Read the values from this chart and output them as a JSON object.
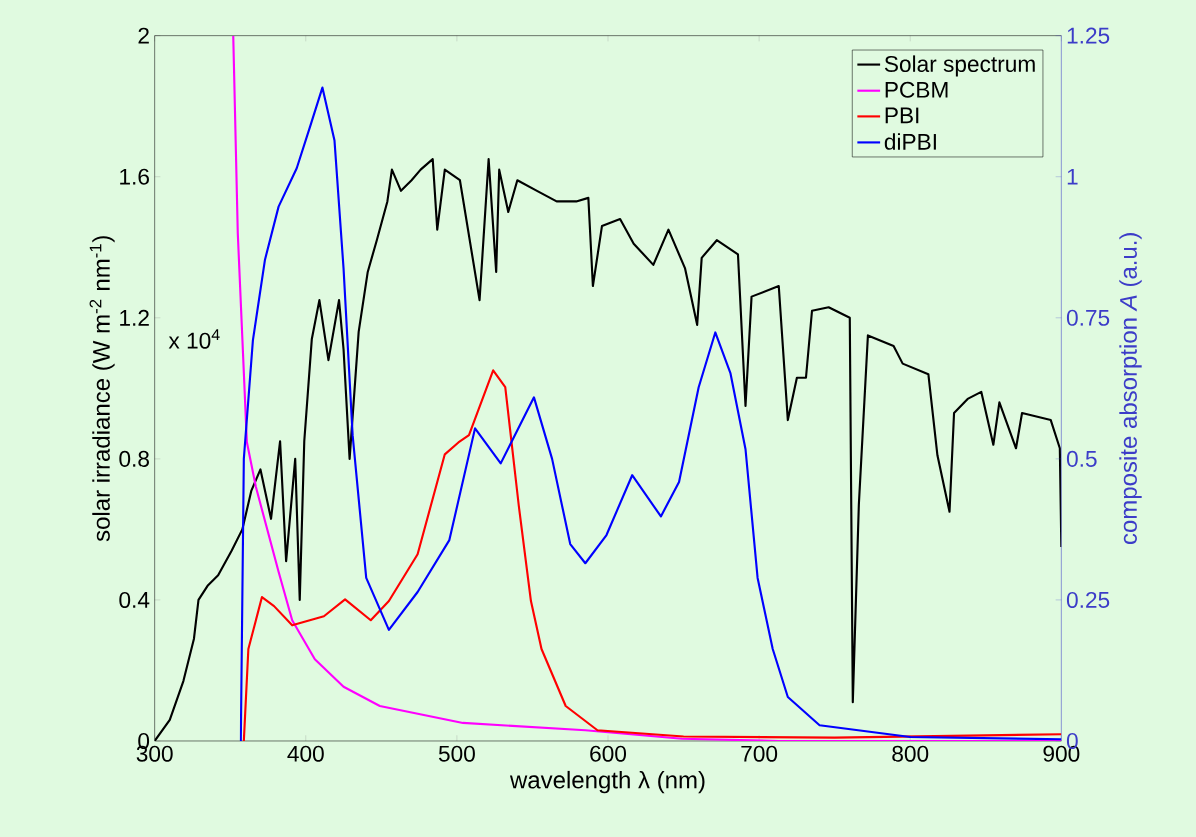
{
  "chart_data": {
    "type": "line",
    "xlabel": "wavelength  λ (nm)",
    "ylabel": "solar irradiance  (W m$^{-2}$ nm$^{-1}$)",
    "y2label": "composite absorption  *A* (a.u.)",
    "annotations": [
      "x 10$^{4}$"
    ],
    "xlim": [
      300,
      900
    ],
    "xticks": [
      300,
      400,
      500,
      600,
      700,
      800,
      900
    ],
    "ylim": [
      0,
      2
    ],
    "yticks": [
      0,
      0.4,
      0.8,
      1.2,
      1.6,
      2
    ],
    "y2lim": [
      0,
      1.25
    ],
    "y2ticks": [
      0,
      0.25,
      0.5,
      0.75,
      1,
      1.25
    ],
    "legend": "top right",
    "series": [
      {
        "name": "Solar spectrum",
        "color": "#000000",
        "axis": "y",
        "x": [
          300,
          310,
          319,
          326,
          329,
          335,
          342,
          351,
          358,
          364,
          370,
          377,
          383,
          387,
          393,
          396,
          399,
          404,
          409,
          415,
          422,
          425,
          429,
          435,
          441,
          447,
          454,
          457,
          463,
          470,
          476,
          484,
          487,
          492,
          502,
          515,
          521,
          526,
          528,
          534,
          540,
          553,
          566,
          579,
          587,
          590,
          596,
          608,
          617,
          630,
          640,
          651,
          659,
          662,
          672,
          686,
          691,
          695,
          713,
          719,
          725,
          731,
          735,
          746,
          760,
          762,
          766,
          772,
          789,
          795,
          812,
          818,
          826,
          829,
          838,
          847,
          855,
          859,
          870,
          874,
          893,
          899,
          900
        ],
        "values": [
          0,
          0.06,
          0.17,
          0.29,
          0.4,
          0.44,
          0.47,
          0.54,
          0.6,
          0.71,
          0.77,
          0.63,
          0.85,
          0.51,
          0.8,
          0.4,
          0.85,
          1.14,
          1.25,
          1.08,
          1.25,
          1.11,
          0.8,
          1.16,
          1.33,
          1.42,
          1.53,
          1.62,
          1.56,
          1.59,
          1.62,
          1.65,
          1.45,
          1.62,
          1.59,
          1.25,
          1.65,
          1.33,
          1.62,
          1.5,
          1.59,
          1.56,
          1.53,
          1.53,
          1.54,
          1.29,
          1.46,
          1.48,
          1.41,
          1.35,
          1.45,
          1.34,
          1.18,
          1.37,
          1.42,
          1.38,
          0.95,
          1.26,
          1.29,
          0.91,
          1.03,
          1.03,
          1.22,
          1.23,
          1.2,
          0.11,
          0.67,
          1.15,
          1.12,
          1.07,
          1.04,
          0.81,
          0.65,
          0.93,
          0.97,
          0.99,
          0.84,
          0.96,
          0.83,
          0.93,
          0.91,
          0.83,
          0.55
        ]
      },
      {
        "name": "PCBM",
        "color": "#ff00ff",
        "axis": "y2",
        "x": [
          352,
          355,
          361,
          367,
          382,
          391,
          406,
          425,
          449,
          504,
          585,
          649,
          713,
          900
        ],
        "values": [
          1.25,
          0.9,
          0.53,
          0.45,
          0.3,
          0.214,
          0.145,
          0.096,
          0.062,
          0.032,
          0.019,
          0.004,
          0,
          0
        ]
      },
      {
        "name": "PBI",
        "color": "#ff0000",
        "axis": "y2",
        "x": [
          359,
          362,
          371,
          379,
          391,
          412,
          426,
          443,
          455,
          474,
          492,
          501,
          508,
          524,
          532,
          541,
          549,
          556,
          572,
          593,
          650,
          750,
          900
        ],
        "values": [
          0,
          0.163,
          0.255,
          0.239,
          0.205,
          0.221,
          0.251,
          0.214,
          0.248,
          0.331,
          0.508,
          0.529,
          0.542,
          0.657,
          0.627,
          0.416,
          0.248,
          0.163,
          0.062,
          0.019,
          0.008,
          0.006,
          0.012
        ]
      },
      {
        "name": "diPBI",
        "color": "#0000ff",
        "axis": "y2",
        "x": [
          357,
          359,
          365,
          373,
          382,
          394,
          403,
          411,
          419,
          425,
          431,
          440,
          455,
          474,
          495,
          512,
          529,
          551,
          563,
          575,
          585,
          599,
          616,
          635,
          647,
          660,
          671,
          681,
          691,
          699,
          709,
          719,
          740,
          800,
          900
        ],
        "values": [
          0,
          0.5,
          0.71,
          0.853,
          0.947,
          1.015,
          1.09,
          1.158,
          1.064,
          0.837,
          0.542,
          0.289,
          0.197,
          0.264,
          0.356,
          0.554,
          0.492,
          0.609,
          0.5,
          0.349,
          0.315,
          0.365,
          0.471,
          0.398,
          0.459,
          0.627,
          0.724,
          0.652,
          0.517,
          0.289,
          0.163,
          0.078,
          0.028,
          0.007,
          0.003
        ]
      }
    ]
  }
}
